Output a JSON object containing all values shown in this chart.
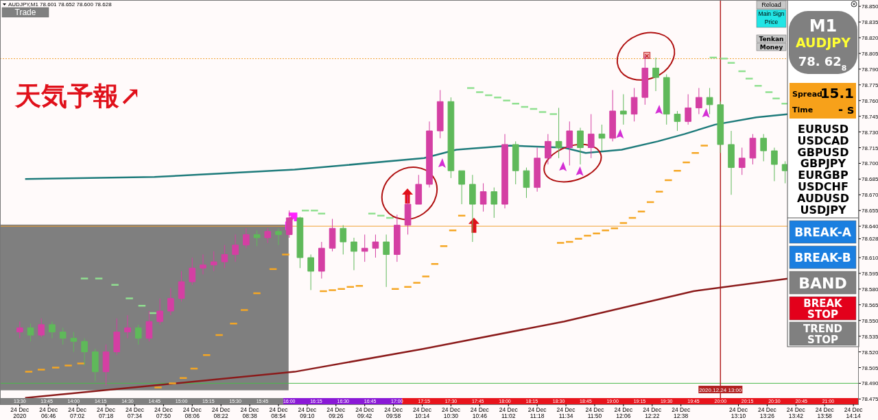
{
  "chart_data": {
    "type": "candlestick",
    "title": "AUDJPY,M1  78.601 78.652 78.600 78.628",
    "xlim": [
      "2020-12-24T06:19",
      "2020-12-24T14:17"
    ],
    "xticks": [
      {
        "value": "2020-12-24T06:30",
        "label": "24 Dec 2020"
      },
      {
        "value": "2020-12-24T06:46",
        "label": "24 Dec 06:46"
      },
      {
        "value": "2020-12-24T07:02",
        "label": "24 Dec 07:02"
      },
      {
        "value": "2020-12-24T07:18",
        "label": "24 Dec 07:18"
      },
      {
        "value": "2020-12-24T07:34",
        "label": "24 Dec 07:34"
      },
      {
        "value": "2020-12-24T07:50",
        "label": "24 Dec 07:50"
      },
      {
        "value": "2020-12-24T08:06",
        "label": "24 Dec 08:06"
      },
      {
        "value": "2020-12-24T08:22",
        "label": "24 Dec 08:22"
      },
      {
        "value": "2020-12-24T08:38",
        "label": "24 Dec 08:38"
      },
      {
        "value": "2020-12-24T08:54",
        "label": "24 Dec 08:54"
      },
      {
        "value": "2020-12-24T09:10",
        "label": "24 Dec 09:10"
      },
      {
        "value": "2020-12-24T09:26",
        "label": "24 Dec 09:26"
      },
      {
        "value": "2020-12-24T09:42",
        "label": "24 Dec 09:42"
      },
      {
        "value": "2020-12-24T09:58",
        "label": "24 Dec 09:58"
      },
      {
        "value": "2020-12-24T10:14",
        "label": "24 Dec 10:14"
      },
      {
        "value": "2020-12-24T10:30",
        "label": "24 Dec 10:30"
      },
      {
        "value": "2020-12-24T10:46",
        "label": "24 Dec 10:46"
      },
      {
        "value": "2020-12-24T11:02",
        "label": "24 Dec 11:02"
      },
      {
        "value": "2020-12-24T11:18",
        "label": "24 Dec 11:18"
      },
      {
        "value": "2020-12-24T11:34",
        "label": "24 Dec 11:34"
      },
      {
        "value": "2020-12-24T11:50",
        "label": "24 Dec 11:50"
      },
      {
        "value": "2020-12-24T12:06",
        "label": "24 Dec 12:06"
      },
      {
        "value": "2020-12-24T12:22",
        "label": "24 Dec 12:22"
      },
      {
        "value": "2020-12-24T12:38",
        "label": "24 Dec 12:38"
      },
      {
        "value": "2020-12-24T13:10",
        "label": "24 Dec 13:10"
      },
      {
        "value": "2020-12-24T13:26",
        "label": "24 Dec 13:26"
      },
      {
        "value": "2020-12-24T13:42",
        "label": "24 Dec 13:42"
      },
      {
        "value": "2020-12-24T13:58",
        "label": "24 Dec 13:58"
      },
      {
        "value": "2020-12-24T14:14",
        "label": "24 Dec 14:14"
      }
    ],
    "x2lim": [
      "2020-12-24T13:19",
      "2020-12-24T21:17"
    ],
    "x2ticks": [
      {
        "value": "2020-12-24T13:30",
        "label": "13:30"
      },
      {
        "value": "2020-12-24T13:45",
        "label": "13:45"
      },
      {
        "value": "2020-12-24T14:00",
        "label": "14:00"
      },
      {
        "value": "2020-12-24T14:15",
        "label": "14:15"
      },
      {
        "value": "2020-12-24T14:30",
        "label": "14:30"
      },
      {
        "value": "2020-12-24T14:45",
        "label": "14:45"
      },
      {
        "value": "2020-12-24T15:00",
        "label": "15:00"
      },
      {
        "value": "2020-12-24T15:15",
        "label": "15:15"
      },
      {
        "value": "2020-12-24T15:30",
        "label": "15:30"
      },
      {
        "value": "2020-12-24T15:45",
        "label": "15:45"
      },
      {
        "value": "2020-12-24T16:00",
        "label": "16:00"
      },
      {
        "value": "2020-12-24T16:15",
        "label": "16:15"
      },
      {
        "value": "2020-12-24T16:30",
        "label": "16:30"
      },
      {
        "value": "2020-12-24T16:45",
        "label": "16:45"
      },
      {
        "value": "2020-12-24T17:00",
        "label": "17:00"
      },
      {
        "value": "2020-12-24T17:15",
        "label": "17:15"
      },
      {
        "value": "2020-12-24T17:30",
        "label": "17:30"
      },
      {
        "value": "2020-12-24T17:45",
        "label": "17:45"
      },
      {
        "value": "2020-12-24T18:00",
        "label": "18:00"
      },
      {
        "value": "2020-12-24T18:15",
        "label": "18:15"
      },
      {
        "value": "2020-12-24T18:30",
        "label": "18:30"
      },
      {
        "value": "2020-12-24T18:45",
        "label": "18:45"
      },
      {
        "value": "2020-12-24T19:00",
        "label": "19:00"
      },
      {
        "value": "2020-12-24T19:15",
        "label": "19:15"
      },
      {
        "value": "2020-12-24T19:30",
        "label": "19:30"
      },
      {
        "value": "2020-12-24T19:45",
        "label": "19:45"
      },
      {
        "value": "2020-12-24T20:00",
        "label": "20:00"
      },
      {
        "value": "2020-12-24T20:15",
        "label": "20:15"
      },
      {
        "value": "2020-12-24T20:30",
        "label": "20:30"
      },
      {
        "value": "2020-12-24T20:45",
        "label": "20:45"
      },
      {
        "value": "2020-12-24T21:00",
        "label": "21:00"
      }
    ],
    "ylim": [
      78.47,
      78.856
    ],
    "yticks": [
      78.475,
      {
        "value": 78.49,
        "label": "78.490"
      },
      78.505,
      {
        "value": 78.52,
        "label": "78.520"
      },
      78.535,
      {
        "value": 78.55,
        "label": "78.550"
      },
      78.565,
      {
        "value": 78.58,
        "label": "78.580"
      },
      78.595,
      {
        "value": 78.61,
        "label": "78.610"
      },
      78.628,
      {
        "value": 78.64,
        "label": "78.640"
      },
      78.655,
      {
        "value": 78.67,
        "label": "78.670"
      },
      78.685,
      {
        "value": 78.7,
        "label": "78.700"
      },
      78.715,
      {
        "value": 78.73,
        "label": "78.730"
      },
      78.745,
      {
        "value": 78.76,
        "label": "78.760"
      },
      78.775,
      {
        "value": 78.79,
        "label": "78.790"
      },
      78.805,
      {
        "value": 78.82,
        "label": "78.820"
      },
      78.835,
      {
        "value": 78.85,
        "label": "78.850"
      }
    ],
    "ref_lines": [
      {
        "axis": "y",
        "value": 78.64,
        "color": "#f0a030",
        "line_style": "solid"
      },
      {
        "axis": "y",
        "value": 78.8,
        "color": "#f0a030",
        "line_style": "dotted"
      },
      {
        "axis": "y",
        "value": 78.49,
        "color": "#4cb84c",
        "line_style": "solid"
      },
      {
        "axis": "x",
        "value": "2020-12-24T13:00",
        "label": "2020.12.24 13:00",
        "color": "#b22222",
        "line_style": "solid"
      }
    ],
    "annotations": [
      "天気予報↗",
      "Trade",
      "Reload",
      "Main Sign",
      "Price",
      "Tenkan",
      "Money",
      "M1",
      "AUDJPY",
      "78. 62$_{8}$",
      "Spread",
      "15.1",
      "Time",
      "- s",
      "EURUSD",
      "USDCAD",
      "GBPUSD",
      "GBPJPY",
      "EURGBP",
      "USDCHF",
      "AUDUSD",
      "USDJPY",
      "BREAK-A",
      "BREAK-B",
      "BAND",
      "BREAK STOP",
      "TREND STOP"
    ],
    "series": [
      {
        "type": "line",
        "color": "#1e7b7b",
        "x": [
          "2020-12-24T06:33",
          "2020-12-24T07:45",
          "2020-12-24T09:03",
          "2020-12-24T10:15",
          "2020-12-24T10:33",
          "2020-12-24T11:03",
          "2020-12-24T11:33",
          "2020-12-24T11:45",
          "2020-12-24T12:05",
          "2020-12-24T12:25",
          "2020-12-24T12:40",
          "2020-12-24T12:57",
          "2020-12-24T13:20",
          "2020-12-24T13:38"
        ],
        "values": [
          78.685,
          78.687,
          78.694,
          78.705,
          78.713,
          78.717,
          78.715,
          78.71,
          78.713,
          78.721,
          78.728,
          78.737,
          78.744,
          78.747
        ]
      },
      {
        "type": "line",
        "color": "#8b1a1a",
        "x": [
          "2020-12-24T06:33",
          "2020-12-24T09:03",
          "2020-12-24T10:15",
          "2020-12-24T11:33",
          "2020-12-24T12:45",
          "2020-12-24T13:38"
        ],
        "values": [
          78.476,
          78.501,
          78.523,
          78.549,
          78.578,
          78.59
        ]
      },
      {
        "type": "line",
        "color": "#f5a623",
        "x": [
          "2020-12-24T06:33",
          "2020-12-24T06:37",
          null,
          "2020-12-24T06:40",
          "2020-12-24T06:44",
          null,
          "2020-12-24T06:48",
          "2020-12-24T06:52",
          null,
          "2020-12-24T06:55",
          "2020-12-24T06:59",
          null,
          "2020-12-24T07:02",
          "2020-12-24T07:06",
          null,
          "2020-12-24T07:45",
          "2020-12-24T07:49",
          null,
          "2020-12-24T07:53",
          "2020-12-24T07:57",
          null,
          "2020-12-24T07:59",
          "2020-12-24T08:03",
          null,
          "2020-12-24T08:05",
          "2020-12-24T08:09",
          null,
          "2020-12-24T08:12",
          "2020-12-24T08:16",
          null,
          "2020-12-24T08:19",
          "2020-12-24T08:23",
          null,
          "2020-12-24T08:27",
          "2020-12-24T08:31",
          null,
          "2020-12-24T08:33",
          "2020-12-24T08:37",
          null,
          "2020-12-24T08:40",
          "2020-12-24T08:44",
          null,
          "2020-12-24T08:49",
          "2020-12-24T08:53",
          null,
          "2020-12-24T08:56",
          "2020-12-24T09:00",
          null,
          "2020-12-24T09:17",
          "2020-12-24T09:21",
          null,
          "2020-12-24T09:22",
          "2020-12-24T09:26",
          null,
          "2020-12-24T09:27",
          "2020-12-24T09:31",
          null,
          "2020-12-24T09:32",
          "2020-12-24T09:36",
          null,
          "2020-12-24T09:37",
          "2020-12-24T09:41",
          null,
          "2020-12-24T09:57",
          "2020-12-24T10:01",
          null,
          "2020-12-24T10:04",
          "2020-12-24T10:08",
          null,
          "2020-12-24T10:09",
          "2020-12-24T10:13",
          null,
          "2020-12-24T10:14",
          "2020-12-24T10:18",
          null,
          "2020-12-24T10:19",
          "2020-12-24T10:23",
          null,
          "2020-12-24T10:24",
          "2020-12-24T10:28",
          null,
          "2020-12-24T10:29",
          "2020-12-24T10:33",
          null,
          "2020-12-24T10:34",
          "2020-12-24T10:38",
          null,
          "2020-12-24T11:29",
          "2020-12-24T11:33",
          null,
          "2020-12-24T11:34",
          "2020-12-24T11:38",
          null,
          "2020-12-24T11:39",
          "2020-12-24T11:43",
          null,
          "2020-12-24T11:44",
          "2020-12-24T11:48",
          null,
          "2020-12-24T11:49",
          "2020-12-24T11:53",
          null,
          "2020-12-24T11:54",
          "2020-12-24T11:58",
          null,
          "2020-12-24T11:59",
          "2020-12-24T12:03",
          null,
          "2020-12-24T12:04",
          "2020-12-24T12:08",
          null,
          "2020-12-24T12:09",
          "2020-12-24T12:13",
          null,
          "2020-12-24T12:14",
          "2020-12-24T12:18",
          null,
          "2020-12-24T12:19",
          "2020-12-24T12:23",
          null,
          "2020-12-24T12:24",
          "2020-12-24T12:28",
          null,
          "2020-12-24T12:29",
          "2020-12-24T12:33",
          null,
          "2020-12-24T12:34",
          "2020-12-24T12:38",
          null,
          "2020-12-24T12:39",
          "2020-12-24T12:43",
          null,
          "2020-12-24T12:44",
          "2020-12-24T12:48",
          null,
          "2020-12-24T12:49",
          "2020-12-24T12:53",
          null
        ],
        "values": [
          78.501,
          78.501,
          null,
          78.503,
          78.503,
          null,
          78.505,
          78.505,
          null,
          78.507,
          78.507,
          null,
          78.509,
          78.509,
          null,
          78.486,
          78.486,
          null,
          78.49,
          78.49,
          null,
          78.495,
          78.495,
          null,
          78.504,
          78.504,
          null,
          78.517,
          78.517,
          null,
          78.536,
          78.536,
          null,
          78.547,
          78.547,
          null,
          78.56,
          78.56,
          null,
          78.576,
          78.576,
          null,
          78.599,
          78.599,
          null,
          78.613,
          78.613,
          null,
          78.578,
          78.578,
          null,
          78.579,
          78.579,
          null,
          78.58,
          78.58,
          null,
          78.582,
          78.582,
          null,
          78.583,
          78.583,
          null,
          78.58,
          78.58,
          null,
          78.582,
          78.582,
          null,
          78.586,
          78.586,
          null,
          78.592,
          78.592,
          null,
          78.604,
          78.604,
          null,
          78.621,
          78.621,
          null,
          78.636,
          78.636,
          null,
          78.65,
          78.65,
          null,
          78.624,
          78.624,
          null,
          78.625,
          78.625,
          null,
          78.628,
          78.628,
          null,
          78.631,
          78.631,
          null,
          78.633,
          78.633,
          null,
          78.636,
          78.636,
          null,
          78.638,
          78.638,
          null,
          78.643,
          78.643,
          null,
          78.648,
          78.648,
          null,
          78.654,
          78.654,
          null,
          78.663,
          78.663,
          null,
          78.673,
          78.673,
          null,
          78.684,
          78.684,
          null,
          78.693,
          78.693,
          null,
          78.701,
          78.701,
          null,
          78.71,
          78.71,
          null,
          78.717,
          78.717,
          null
        ]
      },
      {
        "type": "line",
        "color": "#90e090",
        "x": [
          "2020-12-24T07:04",
          "2020-12-24T07:08",
          null,
          "2020-12-24T07:12",
          "2020-12-24T07:16",
          null,
          "2020-12-24T07:21",
          "2020-12-24T07:25",
          null,
          "2020-12-24T07:29",
          "2020-12-24T07:33",
          null,
          "2020-12-24T07:36",
          "2020-12-24T07:40",
          null,
          "2020-12-24T07:42",
          "2020-12-24T07:46",
          null,
          "2020-12-24T09:07",
          "2020-12-24T09:11",
          null,
          "2020-12-24T09:12",
          "2020-12-24T09:16",
          null,
          "2020-12-24T09:16",
          "2020-12-24T09:20",
          null,
          "2020-12-24T09:44",
          "2020-12-24T09:48",
          null,
          "2020-12-24T09:49",
          "2020-12-24T09:53",
          null,
          "2020-12-24T09:54",
          "2020-12-24T09:58",
          null,
          "2020-12-24T10:39",
          "2020-12-24T10:43",
          null,
          "2020-12-24T10:44",
          "2020-12-24T10:48",
          null,
          "2020-12-24T10:49",
          "2020-12-24T10:53",
          null,
          "2020-12-24T10:54",
          "2020-12-24T10:58",
          null,
          "2020-12-24T10:59",
          "2020-12-24T11:03",
          null,
          "2020-12-24T11:04",
          "2020-12-24T11:08",
          null,
          "2020-12-24T11:09",
          "2020-12-24T11:13",
          null,
          "2020-12-24T11:14",
          "2020-12-24T11:18",
          null,
          "2020-12-24T11:19",
          "2020-12-24T11:23",
          null,
          "2020-12-24T11:25",
          "2020-12-24T11:29",
          null,
          "2020-12-24T12:54",
          "2020-12-24T12:58",
          null,
          "2020-12-24T13:00",
          "2020-12-24T13:04",
          null,
          "2020-12-24T13:04",
          "2020-12-24T13:08",
          null,
          "2020-12-24T13:10",
          "2020-12-24T13:14",
          null,
          "2020-12-24T13:14",
          "2020-12-24T13:18",
          null,
          "2020-12-24T13:19",
          "2020-12-24T13:23",
          null,
          "2020-12-24T13:25",
          "2020-12-24T13:29",
          null,
          "2020-12-24T13:29",
          "2020-12-24T13:33",
          null,
          "2020-12-24T13:34",
          "2020-12-24T13:38",
          null
        ],
        "values": [
          78.59,
          78.59,
          null,
          78.59,
          78.59,
          null,
          78.584,
          78.584,
          null,
          78.571,
          78.571,
          null,
          78.564,
          78.564,
          null,
          78.557,
          78.557,
          null,
          78.655,
          78.655,
          null,
          78.655,
          78.655,
          null,
          78.652,
          78.652,
          null,
          78.652,
          78.652,
          null,
          78.65,
          78.65,
          null,
          78.648,
          78.648,
          null,
          78.772,
          78.772,
          null,
          78.768,
          78.768,
          null,
          78.765,
          78.765,
          null,
          78.763,
          78.763,
          null,
          78.76,
          78.76,
          null,
          78.757,
          78.757,
          null,
          78.754,
          78.754,
          null,
          78.752,
          78.752,
          null,
          78.749,
          78.749,
          null,
          78.747,
          78.747,
          null,
          78.801,
          78.801,
          null,
          78.8,
          78.8,
          null,
          78.796,
          78.796,
          null,
          78.788,
          78.788,
          null,
          78.781,
          78.781,
          null,
          78.774,
          78.774,
          null,
          78.768,
          78.768,
          null,
          78.762,
          78.762,
          null,
          78.757,
          78.757,
          null
        ]
      },
      {
        "type": "candlestick",
        "x": [
          "2020-12-24T06:30",
          "2020-12-24T06:36",
          "2020-12-24T06:42",
          "2020-12-24T06:48",
          "2020-12-24T06:54",
          "2020-12-24T07:00",
          "2020-12-24T07:06",
          "2020-12-24T07:12",
          "2020-12-24T07:18",
          "2020-12-24T07:24",
          "2020-12-24T07:30",
          "2020-12-24T07:36",
          "2020-12-24T07:42",
          "2020-12-24T07:48",
          "2020-12-24T07:54",
          "2020-12-24T08:00",
          "2020-12-24T08:06",
          "2020-12-24T08:12",
          "2020-12-24T08:18",
          "2020-12-24T08:24",
          "2020-12-24T08:30",
          "2020-12-24T08:36",
          "2020-12-24T08:42",
          "2020-12-24T08:48",
          "2020-12-24T08:54",
          "2020-12-24T09:00",
          "2020-12-24T09:06",
          "2020-12-24T09:12",
          "2020-12-24T09:18",
          "2020-12-24T09:24",
          "2020-12-24T09:30",
          "2020-12-24T09:36",
          "2020-12-24T09:42",
          "2020-12-24T09:48",
          "2020-12-24T09:54",
          "2020-12-24T10:00",
          "2020-12-24T10:06",
          "2020-12-24T10:12",
          "2020-12-24T10:18",
          "2020-12-24T10:24",
          "2020-12-24T10:30",
          "2020-12-24T10:36",
          "2020-12-24T10:42",
          "2020-12-24T10:48",
          "2020-12-24T10:54",
          "2020-12-24T11:00",
          "2020-12-24T11:06",
          "2020-12-24T11:12",
          "2020-12-24T11:18",
          "2020-12-24T11:24",
          "2020-12-24T11:30",
          "2020-12-24T11:36",
          "2020-12-24T11:42",
          "2020-12-24T11:48",
          "2020-12-24T11:54",
          "2020-12-24T12:00",
          "2020-12-24T12:06",
          "2020-12-24T12:12",
          "2020-12-24T12:18",
          "2020-12-24T12:24",
          "2020-12-24T12:30",
          "2020-12-24T12:36",
          "2020-12-24T12:42",
          "2020-12-24T12:48",
          "2020-12-24T12:54",
          "2020-12-24T13:00",
          "2020-12-24T13:06",
          "2020-12-24T13:12",
          "2020-12-24T13:18",
          "2020-12-24T13:24",
          "2020-12-24T13:30",
          "2020-12-24T13:36"
        ],
        "ohlc": [
          [
            78.539,
            78.549,
            78.533,
            78.543
          ],
          [
            78.543,
            78.547,
            78.53,
            78.536
          ],
          [
            78.536,
            78.552,
            78.534,
            78.546
          ],
          [
            78.546,
            78.549,
            78.533,
            78.539
          ],
          [
            78.539,
            78.543,
            78.527,
            78.533
          ],
          [
            78.533,
            78.539,
            78.52,
            78.53
          ],
          [
            78.53,
            78.533,
            78.507,
            78.52
          ],
          [
            78.52,
            78.523,
            78.492,
            78.501
          ],
          [
            78.501,
            78.527,
            78.488,
            78.52
          ],
          [
            78.52,
            78.552,
            78.517,
            78.539
          ],
          [
            78.539,
            78.555,
            78.533,
            78.543
          ],
          [
            78.543,
            78.546,
            78.527,
            78.533
          ],
          [
            78.533,
            78.559,
            78.53,
            78.549
          ],
          [
            78.549,
            78.571,
            78.546,
            78.559
          ],
          [
            78.559,
            78.581,
            78.555,
            78.571
          ],
          [
            78.571,
            78.597,
            78.568,
            78.587
          ],
          [
            78.587,
            78.61,
            78.584,
            78.6
          ],
          [
            78.6,
            78.613,
            78.594,
            78.603
          ],
          [
            78.603,
            78.616,
            78.597,
            78.606
          ],
          [
            78.606,
            78.622,
            78.6,
            78.613
          ],
          [
            78.613,
            78.632,
            78.606,
            78.622
          ],
          [
            78.622,
            78.638,
            78.619,
            78.632
          ],
          [
            78.632,
            78.636,
            78.621,
            78.629
          ],
          [
            78.629,
            78.638,
            78.624,
            78.635
          ],
          [
            78.635,
            78.638,
            78.622,
            78.632
          ],
          [
            78.632,
            78.655,
            78.629,
            78.648
          ],
          [
            78.648,
            78.649,
            78.6,
            78.61
          ],
          [
            78.61,
            78.613,
            78.579,
            78.597
          ],
          [
            78.597,
            78.625,
            78.59,
            78.619
          ],
          [
            78.619,
            78.647,
            78.616,
            78.638
          ],
          [
            78.638,
            78.641,
            78.613,
            78.625
          ],
          [
            78.625,
            78.629,
            78.598,
            78.616
          ],
          [
            78.616,
            78.632,
            78.606,
            78.619
          ],
          [
            78.619,
            78.632,
            78.61,
            78.625
          ],
          [
            78.625,
            78.632,
            78.582,
            78.613
          ],
          [
            78.613,
            78.651,
            78.606,
            78.641
          ],
          [
            78.641,
            78.67,
            78.632,
            78.661
          ],
          [
            78.661,
            78.689,
            78.661,
            78.68
          ],
          [
            78.68,
            78.74,
            78.677,
            78.731
          ],
          [
            78.731,
            78.77,
            78.724,
            78.759
          ],
          [
            78.759,
            78.763,
            78.686,
            78.693
          ],
          [
            78.693,
            78.693,
            78.661,
            78.68
          ],
          [
            78.68,
            78.689,
            78.625,
            78.661
          ],
          [
            78.661,
            78.681,
            78.654,
            78.673
          ],
          [
            78.673,
            78.677,
            78.648,
            78.661
          ],
          [
            78.661,
            78.728,
            78.657,
            78.718
          ],
          [
            78.718,
            78.721,
            78.68,
            78.693
          ],
          [
            78.693,
            78.696,
            78.667,
            78.677
          ],
          [
            78.677,
            78.715,
            78.673,
            78.705
          ],
          [
            78.705,
            78.728,
            78.699,
            78.721
          ],
          [
            78.721,
            78.753,
            78.705,
            78.715
          ],
          [
            78.715,
            78.74,
            78.698,
            78.731
          ],
          [
            78.731,
            78.734,
            78.699,
            78.715
          ],
          [
            78.715,
            78.747,
            78.705,
            78.728
          ],
          [
            78.728,
            78.737,
            78.712,
            78.724
          ],
          [
            78.724,
            78.77,
            78.721,
            78.75
          ],
          [
            78.75,
            78.766,
            78.737,
            78.747
          ],
          [
            78.747,
            78.772,
            78.74,
            78.763
          ],
          [
            78.763,
            78.803,
            78.756,
            78.791
          ],
          [
            78.791,
            78.801,
            78.769,
            78.782
          ],
          [
            78.782,
            78.785,
            78.737,
            78.747
          ],
          [
            78.747,
            78.75,
            78.731,
            78.74
          ],
          [
            78.74,
            78.766,
            78.737,
            78.753
          ],
          [
            78.753,
            78.772,
            78.747,
            78.763
          ],
          [
            78.763,
            78.772,
            78.747,
            78.756
          ],
          [
            78.756,
            78.759,
            78.71,
            78.718
          ],
          [
            78.718,
            78.731,
            78.67,
            78.696
          ],
          [
            78.696,
            78.715,
            78.689,
            78.705
          ],
          [
            78.705,
            78.728,
            78.699,
            78.724
          ],
          [
            78.724,
            78.728,
            78.702,
            78.712
          ],
          [
            78.712,
            78.715,
            78.683,
            78.699
          ],
          [
            78.699,
            78.702,
            78.681,
            78.693
          ]
        ],
        "colors": [
          "#d43fa3",
          "#5fb95a",
          "#d43fa3",
          "#5fb95a",
          "#5fb95a",
          "#5fb95a",
          "#5fb95a",
          "#5fb95a",
          "#d43fa3",
          "#d43fa3",
          "#d43fa3",
          "#5fb95a",
          "#d43fa3",
          "#d43fa3",
          "#d43fa3",
          "#d43fa3",
          "#d43fa3",
          "#d43fa3",
          "#d43fa3",
          "#d43fa3",
          "#d43fa3",
          "#d43fa3",
          "#5fb95a",
          "#d43fa3",
          "#5fb95a",
          "#d43fa3",
          "#5fb95a",
          "#5fb95a",
          "#d43fa3",
          "#d43fa3",
          "#5fb95a",
          "#5fb95a",
          "#d43fa3",
          "#d43fa3",
          "#5fb95a",
          "#d43fa3",
          "#d43fa3",
          "#d43fa3",
          "#d43fa3",
          "#d43fa3",
          "#5fb95a",
          "#5fb95a",
          "#5fb95a",
          "#d43fa3",
          "#5fb95a",
          "#d43fa3",
          "#5fb95a",
          "#5fb95a",
          "#d43fa3",
          "#d43fa3",
          "#5fb95a",
          "#d43fa3",
          "#5fb95a",
          "#d43fa3",
          "#5fb95a",
          "#d43fa3",
          "#5fb95a",
          "#d43fa3",
          "#d43fa3",
          "#5fb95a",
          "#5fb95a",
          "#5fb95a",
          "#d43fa3",
          "#d43fa3",
          "#5fb95a",
          "#5fb95a",
          "#5fb95a",
          "#d43fa3",
          "#d43fa3",
          "#5fb95a",
          "#5fb95a",
          "#5fb95a"
        ]
      }
    ]
  }
}
